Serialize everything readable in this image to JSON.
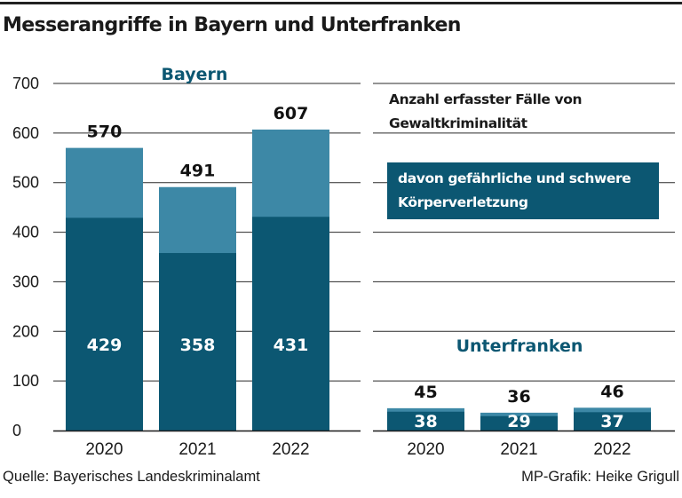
{
  "title": "Messerangriffe in Bayern und Unterfranken",
  "legend": {
    "total_label": "Anzahl erfasster Fälle von Gewaltkriminalität",
    "subset_label": "davon gefährliche und schwere Körperverletzung"
  },
  "colors": {
    "total": "#3d88a6",
    "subset": "#0c5772",
    "group_title": "#0c5772",
    "gridline": "#2a2a2a"
  },
  "chart_data": {
    "type": "bar",
    "ylim": [
      0,
      700
    ],
    "yticks": [
      0,
      100,
      200,
      300,
      400,
      500,
      600,
      700
    ],
    "groups": [
      {
        "name": "Bayern",
        "categories": [
          "2020",
          "2021",
          "2022"
        ],
        "series": [
          {
            "name": "Anzahl erfasster Fälle von Gewaltkriminalität",
            "values": [
              570,
              491,
              607
            ]
          },
          {
            "name": "davon gefährliche und schwere Körperverletzung",
            "values": [
              429,
              358,
              431
            ]
          }
        ]
      },
      {
        "name": "Unterfranken",
        "categories": [
          "2020",
          "2021",
          "2022"
        ],
        "series": [
          {
            "name": "Anzahl erfasster Fälle von Gewaltkriminalität",
            "values": [
              45,
              36,
              46
            ]
          },
          {
            "name": "davon gefährliche und schwere Körperverletzung",
            "values": [
              38,
              29,
              37
            ]
          }
        ]
      }
    ]
  },
  "footer": {
    "source": "Quelle: Bayerisches Landeskriminalamt",
    "credit": "MP-Grafik: Heike Grigull"
  }
}
